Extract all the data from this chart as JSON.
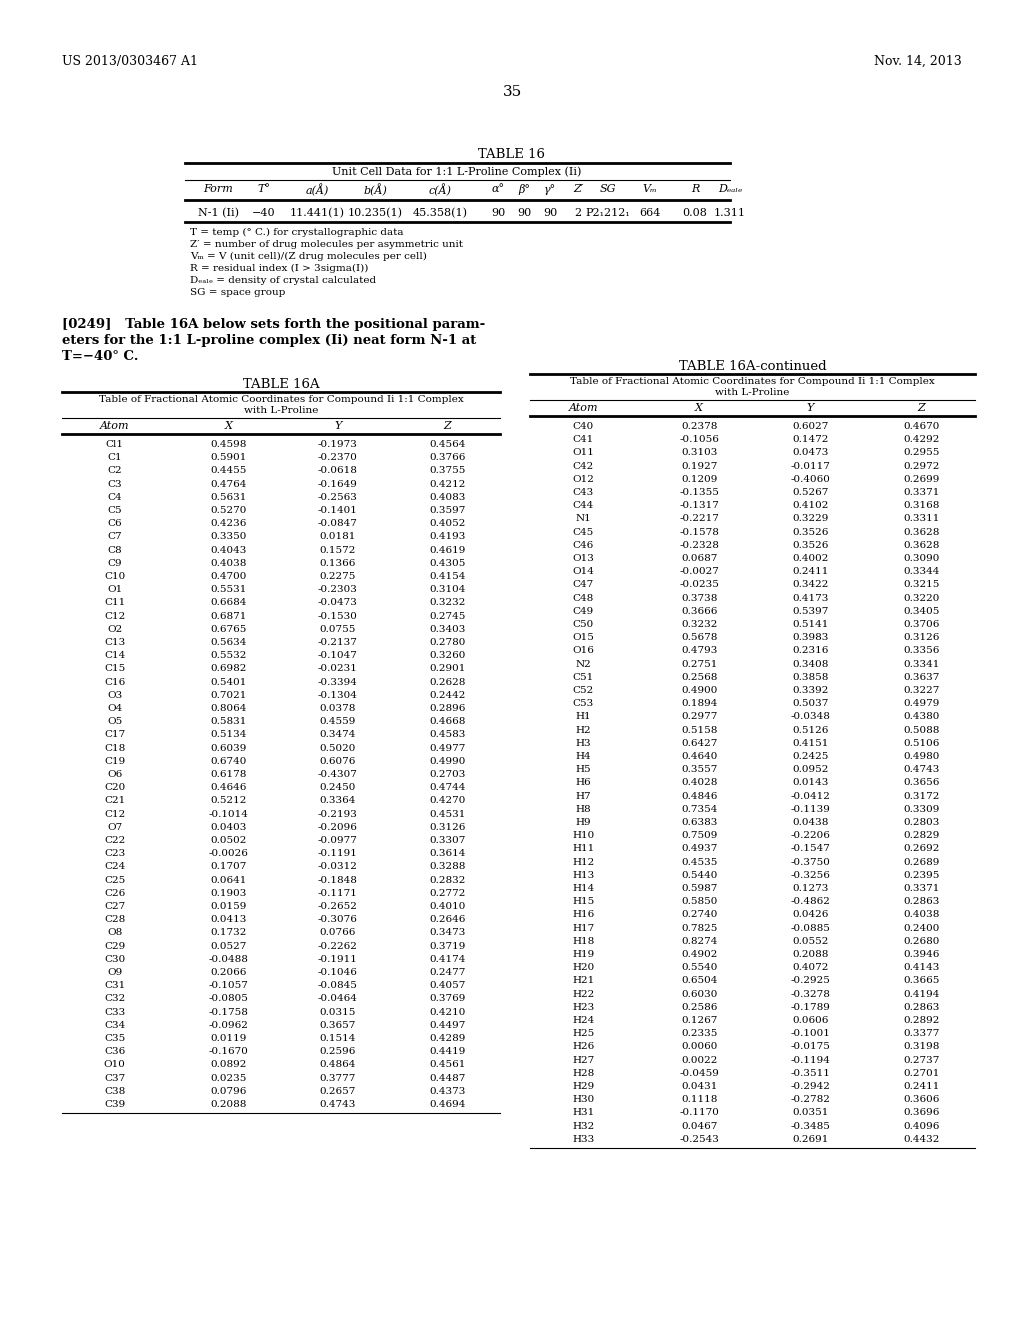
{
  "header_left": "US 2013/0303467 A1",
  "header_right": "Nov. 14, 2013",
  "page_number": "35",
  "table16_title": "TABLE 16",
  "table16_subtitle": "Unit Cell Data for 1:1 L-Proline Complex (Ii)",
  "table16_col_headers": [
    "Form",
    "T°",
    "a(Å)",
    "b(Å)",
    "c(Å)",
    "α°",
    "β°",
    "γ°",
    "Z′",
    "SG",
    "Vₘ",
    "R",
    "Dₑₐₗₑ"
  ],
  "table16_data": [
    "N-1 (Ii)",
    "−40",
    "11.441(1)",
    "10.235(1)",
    "45.358(1)",
    "90",
    "90",
    "90",
    "2",
    "P2₁212₁",
    "664",
    "0.08",
    "1.311"
  ],
  "table16_footnotes": [
    "T = temp (° C.) for crystallographic data",
    "Z′ = number of drug molecules per asymmetric unit",
    "Vₘ = V (unit cell)/(Z drug molecules per cell)",
    "R = residual index (I > 3sigma(I))",
    "Dₑₐₗₑ = density of crystal calculated",
    "SG = space group"
  ],
  "para_line1": "[0249]   Table 16A below sets forth the positional param-",
  "para_line2": "eters for the 1:1 L-proline complex (Ii) neat form N-1 at",
  "para_line3": "T=−40° C.",
  "table16a_title": "TABLE 16A",
  "table16a_sub1": "Table of Fractional Atomic Coordinates for Compound Ii 1:1 Complex",
  "table16a_sub2": "with L-Proline",
  "table16a_col_headers": [
    "Atom",
    "X",
    "Y",
    "Z"
  ],
  "table16a_data": [
    [
      "Cl1",
      "0.4598",
      "-0.1973",
      "0.4564"
    ],
    [
      "C1",
      "0.5901",
      "-0.2370",
      "0.3766"
    ],
    [
      "C2",
      "0.4455",
      "-0.0618",
      "0.3755"
    ],
    [
      "C3",
      "0.4764",
      "-0.1649",
      "0.4212"
    ],
    [
      "C4",
      "0.5631",
      "-0.2563",
      "0.4083"
    ],
    [
      "C5",
      "0.5270",
      "-0.1401",
      "0.3597"
    ],
    [
      "C6",
      "0.4236",
      "-0.0847",
      "0.4052"
    ],
    [
      "C7",
      "0.3350",
      "0.0181",
      "0.4193"
    ],
    [
      "C8",
      "0.4043",
      "0.1572",
      "0.4619"
    ],
    [
      "C9",
      "0.4038",
      "0.1366",
      "0.4305"
    ],
    [
      "C10",
      "0.4700",
      "0.2275",
      "0.4154"
    ],
    [
      "O1",
      "0.5531",
      "-0.2303",
      "0.3104"
    ],
    [
      "C11",
      "0.6684",
      "-0.0473",
      "0.3232"
    ],
    [
      "C12",
      "0.6871",
      "-0.1530",
      "0.2745"
    ],
    [
      "O2",
      "0.6765",
      "0.0755",
      "0.3403"
    ],
    [
      "C13",
      "0.5634",
      "-0.2137",
      "0.2780"
    ],
    [
      "C14",
      "0.5532",
      "-0.1047",
      "0.3260"
    ],
    [
      "C15",
      "0.6982",
      "-0.0231",
      "0.2901"
    ],
    [
      "C16",
      "0.5401",
      "-0.3394",
      "0.2628"
    ],
    [
      "O3",
      "0.7021",
      "-0.1304",
      "0.2442"
    ],
    [
      "O4",
      "0.8064",
      "0.0378",
      "0.2896"
    ],
    [
      "O5",
      "0.5831",
      "0.4559",
      "0.4668"
    ],
    [
      "C17",
      "0.5134",
      "0.3474",
      "0.4583"
    ],
    [
      "C18",
      "0.6039",
      "0.5020",
      "0.4977"
    ],
    [
      "C19",
      "0.6740",
      "0.6076",
      "0.4990"
    ],
    [
      "O6",
      "0.6178",
      "-0.4307",
      "0.2703"
    ],
    [
      "C20",
      "0.4646",
      "0.2450",
      "0.4744"
    ],
    [
      "C21",
      "0.5212",
      "0.3364",
      "0.4270"
    ],
    [
      "C12",
      "-0.1014",
      "-0.2193",
      "0.4531"
    ],
    [
      "O7",
      "0.0403",
      "-0.2096",
      "0.3126"
    ],
    [
      "C22",
      "0.0502",
      "-0.0977",
      "0.3307"
    ],
    [
      "C23",
      "-0.0026",
      "-0.1191",
      "0.3614"
    ],
    [
      "C24",
      "0.1707",
      "-0.0312",
      "0.3288"
    ],
    [
      "C25",
      "0.0641",
      "-0.1848",
      "0.2832"
    ],
    [
      "C26",
      "0.1903",
      "-0.1171",
      "0.2772"
    ],
    [
      "C27",
      "0.0159",
      "-0.2652",
      "0.4010"
    ],
    [
      "C28",
      "0.0413",
      "-0.3076",
      "0.2646"
    ],
    [
      "O8",
      "0.1732",
      "0.0766",
      "0.3473"
    ],
    [
      "C29",
      "0.0527",
      "-0.2262",
      "0.3719"
    ],
    [
      "C30",
      "-0.0488",
      "-0.1911",
      "0.4174"
    ],
    [
      "O9",
      "0.2066",
      "-0.1046",
      "0.2477"
    ],
    [
      "C31",
      "-0.1057",
      "-0.0845",
      "0.4057"
    ],
    [
      "C32",
      "-0.0805",
      "-0.0464",
      "0.3769"
    ],
    [
      "C33",
      "-0.1758",
      "0.0315",
      "0.4210"
    ],
    [
      "C34",
      "-0.0962",
      "0.3657",
      "0.4497"
    ],
    [
      "C35",
      "0.0119",
      "0.1514",
      "0.4289"
    ],
    [
      "C36",
      "-0.1670",
      "0.2596",
      "0.4419"
    ],
    [
      "O10",
      "0.0892",
      "0.4864",
      "0.4561"
    ],
    [
      "C37",
      "0.0235",
      "0.3777",
      "0.4487"
    ],
    [
      "C38",
      "0.0796",
      "0.2657",
      "0.4373"
    ],
    [
      "C39",
      "0.2088",
      "0.4743",
      "0.4694"
    ]
  ],
  "table16a_cont_title": "TABLE 16A-continued",
  "table16a_cont_sub1": "Table of Fractional Atomic Coordinates for Compound Ii 1:1 Complex",
  "table16a_cont_sub2": "with L-Proline",
  "table16a_cont_col_headers": [
    "Atom",
    "X",
    "Y",
    "Z"
  ],
  "table16a_cont_data": [
    [
      "C40",
      "0.2378",
      "0.6027",
      "0.4670"
    ],
    [
      "C41",
      "-0.1056",
      "0.1472",
      "0.4292"
    ],
    [
      "O11",
      "0.3103",
      "0.0473",
      "0.2955"
    ],
    [
      "C42",
      "0.1927",
      "-0.0117",
      "0.2972"
    ],
    [
      "O12",
      "0.1209",
      "-0.4060",
      "0.2699"
    ],
    [
      "C43",
      "-0.1355",
      "0.5267",
      "0.3371"
    ],
    [
      "C44",
      "-0.1317",
      "0.4102",
      "0.3168"
    ],
    [
      "N1",
      "-0.2217",
      "0.3229",
      "0.3311"
    ],
    [
      "C45",
      "-0.1578",
      "0.3526",
      "0.3628"
    ],
    [
      "C46",
      "-0.2328",
      "0.3526",
      "0.3628"
    ],
    [
      "O13",
      "0.0687",
      "0.4002",
      "0.3090"
    ],
    [
      "O14",
      "-0.0027",
      "0.2411",
      "0.3344"
    ],
    [
      "C47",
      "-0.0235",
      "0.3422",
      "0.3215"
    ],
    [
      "C48",
      "0.3738",
      "0.4173",
      "0.3220"
    ],
    [
      "C49",
      "0.3666",
      "0.5397",
      "0.3405"
    ],
    [
      "C50",
      "0.3232",
      "0.5141",
      "0.3706"
    ],
    [
      "O15",
      "0.5678",
      "0.3983",
      "0.3126"
    ],
    [
      "O16",
      "0.4793",
      "0.2316",
      "0.3356"
    ],
    [
      "N2",
      "0.2751",
      "0.3408",
      "0.3341"
    ],
    [
      "C51",
      "0.2568",
      "0.3858",
      "0.3637"
    ],
    [
      "C52",
      "0.4900",
      "0.3392",
      "0.3227"
    ],
    [
      "C53",
      "0.1894",
      "0.5037",
      "0.4979"
    ],
    [
      "H1",
      "0.2977",
      "-0.0348",
      "0.4380"
    ],
    [
      "H2",
      "0.5158",
      "0.5126",
      "0.5088"
    ],
    [
      "H3",
      "0.6427",
      "0.4151",
      "0.5106"
    ],
    [
      "H4",
      "0.4640",
      "0.2425",
      "0.4980"
    ],
    [
      "H5",
      "0.3557",
      "0.0952",
      "0.4743"
    ],
    [
      "H6",
      "0.4028",
      "0.0143",
      "0.3656"
    ],
    [
      "H7",
      "0.4846",
      "-0.0412",
      "0.3172"
    ],
    [
      "H8",
      "0.7354",
      "-0.1139",
      "0.3309"
    ],
    [
      "H9",
      "0.6383",
      "0.0438",
      "0.2803"
    ],
    [
      "H10",
      "0.7509",
      "-0.2206",
      "0.2829"
    ],
    [
      "H11",
      "0.4937",
      "-0.1547",
      "0.2692"
    ],
    [
      "H12",
      "0.4535",
      "-0.3750",
      "0.2689"
    ],
    [
      "H13",
      "0.5440",
      "-0.3256",
      "0.2395"
    ],
    [
      "H14",
      "0.5987",
      "0.1273",
      "0.3371"
    ],
    [
      "H15",
      "0.5850",
      "-0.4862",
      "0.2863"
    ],
    [
      "H16",
      "0.2740",
      "0.0426",
      "0.4038"
    ],
    [
      "H17",
      "0.7825",
      "-0.0885",
      "0.2400"
    ],
    [
      "H18",
      "0.8274",
      "0.0552",
      "0.2680"
    ],
    [
      "H19",
      "0.4902",
      "0.2088",
      "0.3946"
    ],
    [
      "H20",
      "0.5540",
      "0.4072",
      "0.4143"
    ],
    [
      "H21",
      "0.6504",
      "-0.2925",
      "0.3665"
    ],
    [
      "H22",
      "0.6030",
      "-0.3278",
      "0.4194"
    ],
    [
      "H23",
      "0.2586",
      "-0.1789",
      "0.2863"
    ],
    [
      "H24",
      "0.1267",
      "0.0606",
      "0.2892"
    ],
    [
      "H25",
      "0.2335",
      "-0.1001",
      "0.3377"
    ],
    [
      "H26",
      "0.0060",
      "-0.0175",
      "0.3198"
    ],
    [
      "H27",
      "0.0022",
      "-0.1194",
      "0.2737"
    ],
    [
      "H28",
      "-0.0459",
      "-0.3511",
      "0.2701"
    ],
    [
      "H29",
      "0.0431",
      "-0.2942",
      "0.2411"
    ],
    [
      "H30",
      "0.1118",
      "-0.2782",
      "0.3606"
    ],
    [
      "H31",
      "-0.1170",
      "0.0351",
      "0.3696"
    ],
    [
      "H32",
      "0.0467",
      "-0.3485",
      "0.4096"
    ],
    [
      "H33",
      "-0.2543",
      "0.2691",
      "0.4432"
    ]
  ]
}
